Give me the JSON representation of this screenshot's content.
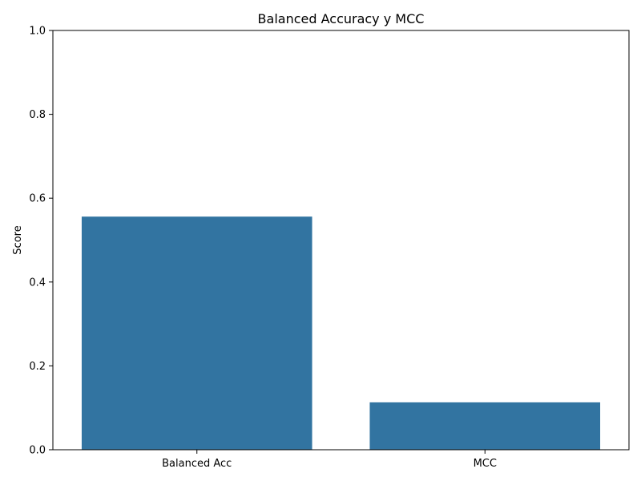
{
  "chart_data": {
    "type": "bar",
    "title": "Balanced Accuracy y MCC",
    "xlabel": "",
    "ylabel": "Score",
    "categories": [
      "Balanced Acc",
      "MCC"
    ],
    "values": [
      0.556,
      0.113
    ],
    "ylim": [
      0,
      1.0
    ],
    "yticks": [
      "0.0",
      "0.2",
      "0.4",
      "0.6",
      "0.8",
      "1.0"
    ],
    "grid": false,
    "legend": "none",
    "bar_color": "#3274a1"
  }
}
